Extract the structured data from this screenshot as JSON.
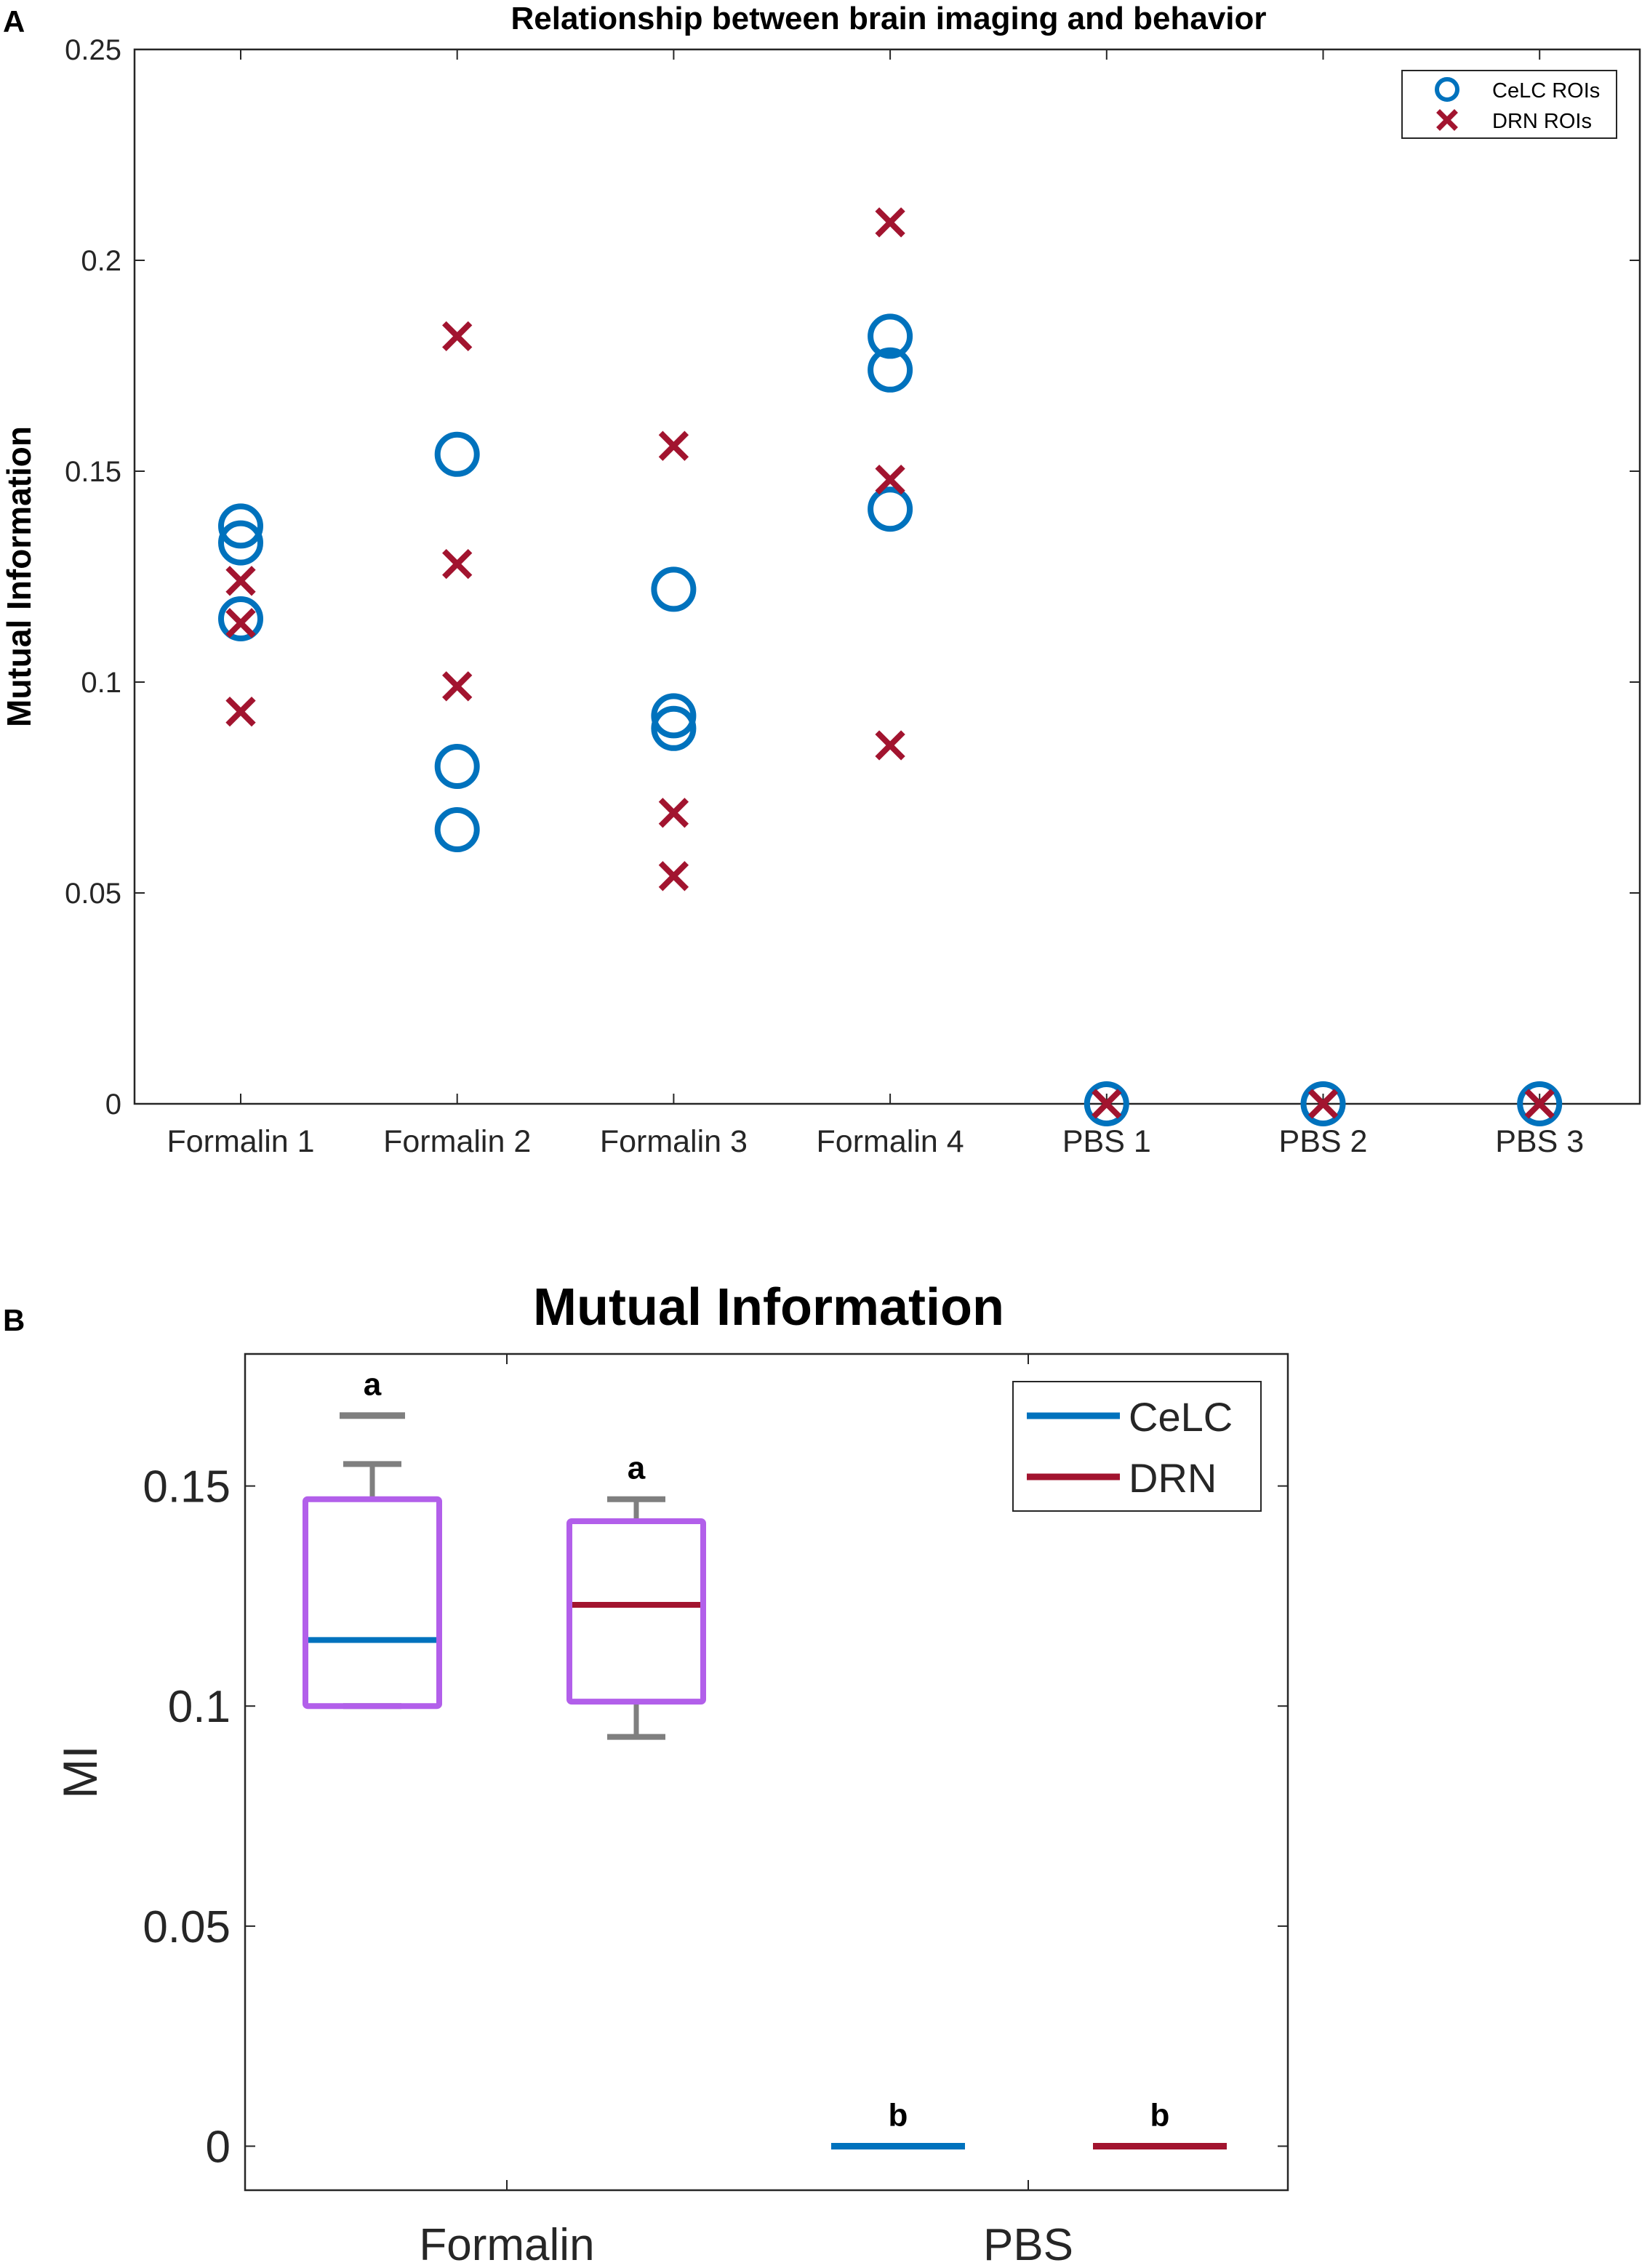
{
  "colors": {
    "celc": "#0072BD",
    "drn": "#A2142F",
    "box": "#B25FEA",
    "whisker": "#7F7F7F",
    "axis": "#262626"
  },
  "chart_data": [
    {
      "panel_label": "A",
      "type": "scatter",
      "title": "Relationship between brain imaging and behavior",
      "xlabel": "",
      "ylabel": "Mutual Information",
      "categories": [
        "Formalin 1",
        "Formalin 2",
        "Formalin 3",
        "Formalin 4",
        "PBS 1",
        "PBS 2",
        "PBS 3"
      ],
      "ylim": [
        0,
        0.25
      ],
      "yticks": [
        0,
        0.05,
        0.1,
        0.15,
        0.2,
        0.25
      ],
      "ytick_labels": [
        "0",
        "0.05",
        "0.1",
        "0.15",
        "0.2",
        "0.25"
      ],
      "legend": {
        "placement": "top-right",
        "entries": [
          "CeLC ROIs",
          "DRN ROIs"
        ]
      },
      "series": [
        {
          "name": "CeLC ROIs",
          "marker": "circle",
          "points": [
            {
              "x": "Formalin 1",
              "values": [
                0.137,
                0.133,
                0.115
              ]
            },
            {
              "x": "Formalin 2",
              "values": [
                0.154,
                0.08,
                0.065
              ]
            },
            {
              "x": "Formalin 3",
              "values": [
                0.122,
                0.092,
                0.089
              ]
            },
            {
              "x": "Formalin 4",
              "values": [
                0.182,
                0.174,
                0.141
              ]
            },
            {
              "x": "PBS 1",
              "values": [
                0
              ]
            },
            {
              "x": "PBS 2",
              "values": [
                0
              ]
            },
            {
              "x": "PBS 3",
              "values": [
                0
              ]
            }
          ]
        },
        {
          "name": "DRN ROIs",
          "marker": "x",
          "points": [
            {
              "x": "Formalin 1",
              "values": [
                0.124,
                0.114,
                0.093
              ]
            },
            {
              "x": "Formalin 2",
              "values": [
                0.182,
                0.128,
                0.099
              ]
            },
            {
              "x": "Formalin 3",
              "values": [
                0.156,
                0.069,
                0.054
              ]
            },
            {
              "x": "Formalin 4",
              "values": [
                0.209,
                0.148,
                0.085
              ]
            },
            {
              "x": "PBS 1",
              "values": [
                0
              ]
            },
            {
              "x": "PBS 2",
              "values": [
                0
              ]
            },
            {
              "x": "PBS 3",
              "values": [
                0
              ]
            }
          ]
        }
      ]
    },
    {
      "panel_label": "B",
      "type": "box",
      "title": "Mutual Information",
      "xlabel": "",
      "ylabel": "MI",
      "categories": [
        "Formalin",
        "PBS"
      ],
      "ylim": [
        -0.01,
        0.18
      ],
      "yticks": [
        0,
        0.05,
        0.1,
        0.15
      ],
      "ytick_labels": [
        "0",
        "0.05",
        "0.1",
        "0.15"
      ],
      "legend": {
        "placement": "top-right",
        "entries": [
          "CeLC",
          "DRN"
        ]
      },
      "boxes": [
        {
          "group": "Formalin",
          "series": "CeLC",
          "whisker_low": 0.1,
          "q1": 0.1,
          "median": 0.115,
          "q3": 0.147,
          "whisker_high": 0.155,
          "outlier": 0.166,
          "letter": "a"
        },
        {
          "group": "Formalin",
          "series": "DRN",
          "whisker_low": 0.093,
          "q1": 0.101,
          "median": 0.123,
          "q3": 0.142,
          "whisker_high": 0.147,
          "outlier": null,
          "letter": "a"
        },
        {
          "group": "PBS",
          "series": "CeLC",
          "whisker_low": 0,
          "q1": 0,
          "median": 0,
          "q3": 0,
          "whisker_high": 0,
          "outlier": null,
          "letter": "b"
        },
        {
          "group": "PBS",
          "series": "DRN",
          "whisker_low": 0,
          "q1": 0,
          "median": 0,
          "q3": 0,
          "whisker_high": 0,
          "outlier": null,
          "letter": "b"
        }
      ]
    }
  ]
}
